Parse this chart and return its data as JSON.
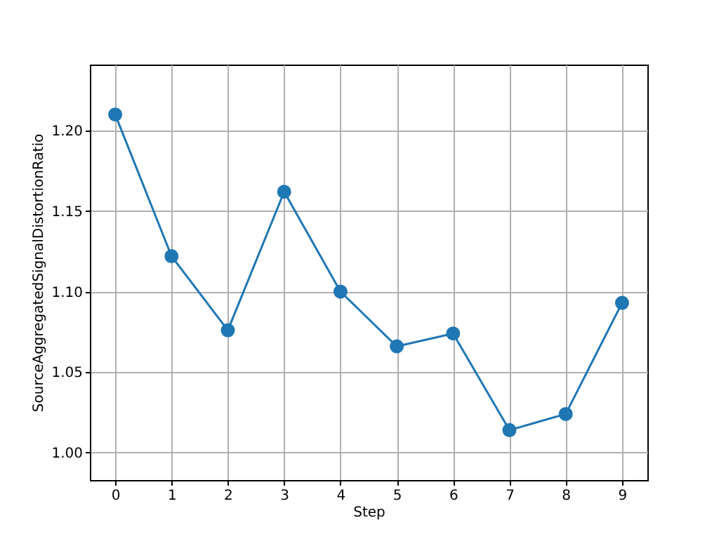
{
  "chart_data": {
    "type": "line",
    "xlabel": "Step",
    "ylabel": "SourceAggregatedSignalDistortionRatio",
    "x": [
      0,
      1,
      2,
      3,
      4,
      5,
      6,
      7,
      8,
      9
    ],
    "series": [
      {
        "color": "#1f77b4",
        "values": [
          1.21,
          1.122,
          1.076,
          1.162,
          1.1,
          1.066,
          1.074,
          1.014,
          1.024,
          1.093
        ]
      }
    ],
    "xlim": [
      -0.45,
      9.45
    ],
    "xticks": [
      0,
      1,
      2,
      3,
      4,
      5,
      6,
      7,
      8,
      9
    ],
    "ylim": [
      0.983,
      1.241
    ],
    "yticks": [
      {
        "value": 1.0,
        "label": "1.00"
      },
      {
        "value": 1.05,
        "label": "1.05"
      },
      {
        "value": 1.1,
        "label": "1.10"
      },
      {
        "value": 1.15,
        "label": "1.15"
      },
      {
        "value": 1.2,
        "label": "1.20"
      }
    ],
    "grid": true,
    "marker": "circle",
    "line_style": "solid"
  }
}
